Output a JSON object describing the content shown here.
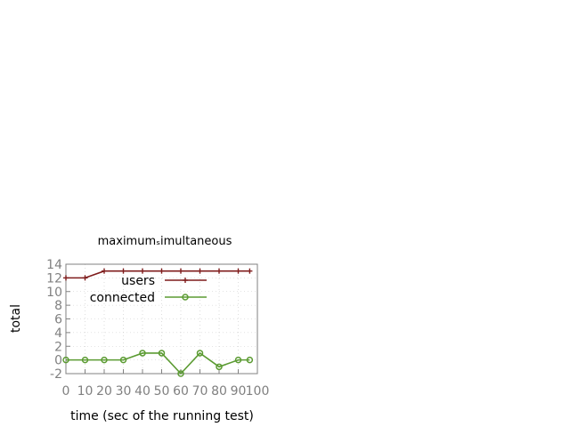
{
  "chart_data": {
    "type": "line",
    "title": "maximum_simultaneous",
    "title_display": "maximumₛimultaneous",
    "xlabel": "time (sec of the running test)",
    "ylabel": "total",
    "xlim": [
      0,
      100
    ],
    "ylim": [
      -2,
      14
    ],
    "xticks": [
      0,
      10,
      20,
      30,
      40,
      50,
      60,
      70,
      80,
      90,
      100
    ],
    "xtick_labels": [
      "0",
      "10",
      "20",
      "30",
      "40",
      "50",
      "60",
      "70",
      "80",
      "90",
      "100"
    ],
    "yticks": [
      -2,
      0,
      2,
      4,
      6,
      8,
      10,
      12,
      14
    ],
    "ytick_labels": [
      "-2",
      "0",
      "2",
      "4",
      "6",
      "8",
      "10",
      "12",
      "14"
    ],
    "grid": true,
    "legend_position": "top-right",
    "x": [
      0,
      10,
      20,
      30,
      40,
      50,
      60,
      70,
      80,
      90,
      96
    ],
    "series": [
      {
        "name": "users",
        "color": "#7f1c1c",
        "marker": "plus",
        "values": [
          12,
          12,
          13,
          13,
          13,
          13,
          13,
          13,
          13,
          13,
          13
        ]
      },
      {
        "name": "connected",
        "color": "#5b9b32",
        "marker": "circle",
        "values": [
          0,
          0,
          0,
          0,
          1,
          1,
          -2,
          1,
          -1,
          0,
          0
        ]
      }
    ]
  }
}
